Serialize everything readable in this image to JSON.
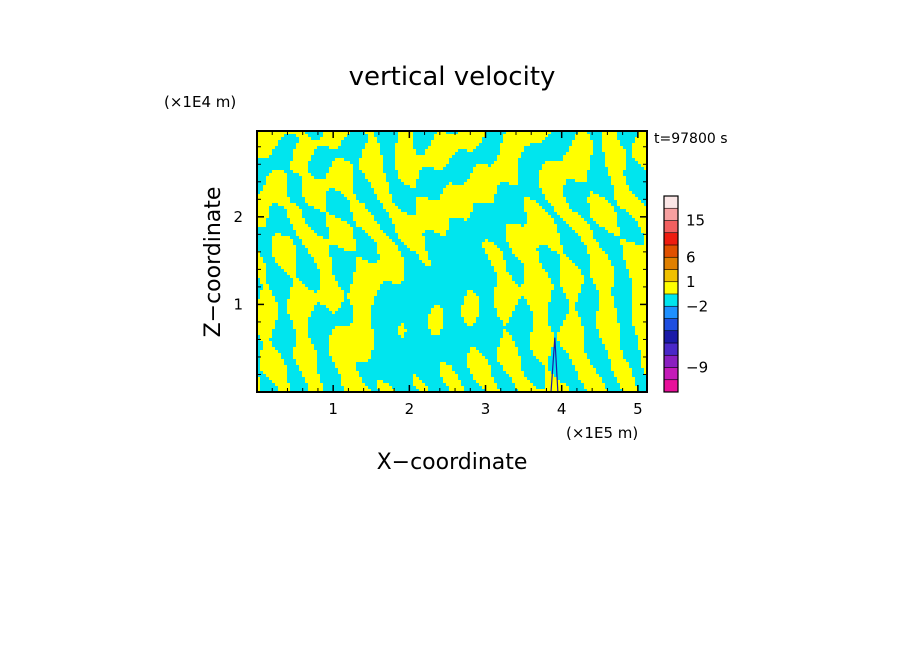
{
  "chart_data": {
    "type": "heatmap",
    "title": "vertical velocity",
    "time_label": "t=97800 s",
    "xlabel": "X−coordinate",
    "ylabel": "Z−coordinate",
    "x_unit": "(×1E5 m)",
    "y_unit": "(×1E4 m)",
    "xlim": [
      0,
      5.12
    ],
    "ylim": [
      0,
      2.98
    ],
    "x_ticks": [
      {
        "value": 1,
        "label": "1"
      },
      {
        "value": 2,
        "label": "2"
      },
      {
        "value": 3,
        "label": "3"
      },
      {
        "value": 4,
        "label": "4"
      },
      {
        "value": 5,
        "label": "5"
      }
    ],
    "y_ticks": [
      {
        "value": 1,
        "label": "1"
      },
      {
        "value": 2,
        "label": "2"
      }
    ],
    "field_colors": {
      "positive": "#ffff00",
      "negative": "#00e5ee"
    },
    "colorbar": {
      "bands": [
        "#e8109a",
        "#c41ab8",
        "#8a1fc0",
        "#4a28c8",
        "#1a1aa8",
        "#1e4ee0",
        "#1e90ff",
        "#00e5ee",
        "#ffff00",
        "#f0c000",
        "#e08000",
        "#e05000",
        "#ee1c10",
        "#f26060",
        "#f6a0a0",
        "#fbe6e6"
      ],
      "tick_labels": [
        {
          "band_edge": 14,
          "label": "15"
        },
        {
          "band_edge": 11,
          "label": "6"
        },
        {
          "band_edge": 9,
          "label": "1"
        },
        {
          "band_edge": 7,
          "label": "−2"
        },
        {
          "band_edge": 2,
          "label": "−9"
        }
      ]
    }
  }
}
